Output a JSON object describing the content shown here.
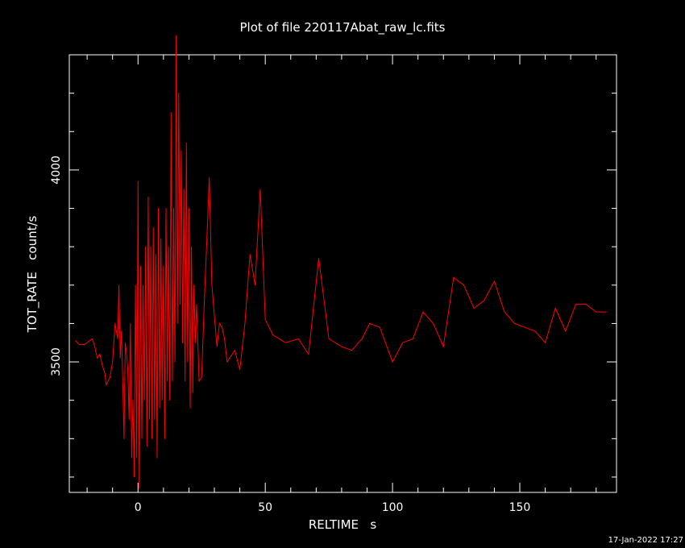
{
  "colors": {
    "background": "#000000",
    "axes": "#ffffff",
    "series": "#ff0000"
  },
  "timestamp": "17-Jan-2022 17:27",
  "chart_data": {
    "type": "line",
    "title": "Plot of file 220117Abat_raw_lc.fits",
    "xlabel": "RELTIME   s",
    "ylabel": "TOT_RATE   count/s",
    "xlim": [
      -27,
      188
    ],
    "ylim": [
      3160,
      4300
    ],
    "xticks": [
      0,
      50,
      100,
      150
    ],
    "xtick_labels": [
      "0",
      "50",
      "100",
      "150"
    ],
    "yticks": [
      3500,
      4000
    ],
    "ytick_labels": [
      "3500",
      "4000"
    ],
    "grid": false,
    "series": [
      {
        "color": "#ff0000",
        "x": [
          -24.5,
          -23,
          -21,
          -18,
          -17,
          -16,
          -15,
          -14,
          -13,
          -12.5,
          -11,
          -10,
          -9,
          -8.5,
          -8,
          -7.5,
          -7,
          -6.5,
          -6,
          -5.5,
          -5,
          -4.5,
          -4,
          -3.5,
          -3,
          -2.5,
          -2,
          -1.5,
          -1,
          -0.5,
          0,
          0.5,
          1,
          1.5,
          2,
          2.5,
          3,
          3.5,
          4,
          4.5,
          5,
          5.5,
          6,
          6.5,
          7,
          7.5,
          8,
          8.5,
          9,
          9.5,
          10,
          10.5,
          11,
          11.5,
          12,
          12.5,
          13,
          13.5,
          14,
          14.5,
          15,
          15.5,
          16,
          16.5,
          17,
          17.5,
          18,
          18.5,
          19,
          19.5,
          20,
          20.5,
          21,
          21.5,
          22,
          22.5,
          23,
          24,
          25,
          26,
          27,
          28,
          29,
          30,
          31,
          32,
          33,
          34,
          35,
          36,
          38,
          40,
          42,
          44,
          46,
          48,
          50,
          53,
          58,
          63,
          67,
          71,
          75,
          80,
          84,
          88,
          91,
          95,
          100,
          104,
          108,
          112,
          116,
          120,
          124,
          128,
          132,
          136,
          140,
          144,
          148,
          152,
          156,
          160,
          164,
          168,
          172,
          176,
          180,
          184
        ],
        "y": [
          3555,
          3545,
          3545,
          3560,
          3540,
          3510,
          3520,
          3490,
          3470,
          3440,
          3460,
          3500,
          3600,
          3580,
          3560,
          3700,
          3510,
          3580,
          3450,
          3300,
          3550,
          3520,
          3480,
          3350,
          3600,
          3250,
          3400,
          3200,
          3700,
          3250,
          3970,
          3170,
          3750,
          3300,
          3700,
          3400,
          3800,
          3280,
          3930,
          3350,
          3800,
          3300,
          3850,
          3350,
          3780,
          3250,
          3900,
          3380,
          3820,
          3400,
          3750,
          3300,
          3900,
          3450,
          3800,
          3400,
          4150,
          3450,
          3900,
          3500,
          4350,
          3600,
          4200,
          3650,
          4050,
          3550,
          3950,
          3450,
          4070,
          3500,
          3900,
          3380,
          3800,
          3420,
          3700,
          3550,
          3650,
          3450,
          3460,
          3650,
          3810,
          3980,
          3700,
          3620,
          3540,
          3600,
          3590,
          3560,
          3500,
          3510,
          3530,
          3480,
          3600,
          3780,
          3700,
          3950,
          3610,
          3570,
          3550,
          3560,
          3520,
          3770,
          3560,
          3540,
          3530,
          3560,
          3600,
          3590,
          3500,
          3550,
          3560,
          3630,
          3600,
          3540,
          3720,
          3700,
          3640,
          3660,
          3710,
          3630,
          3600,
          3590,
          3580,
          3550,
          3640,
          3580,
          3650,
          3650,
          3630,
          3630
        ]
      }
    ]
  }
}
